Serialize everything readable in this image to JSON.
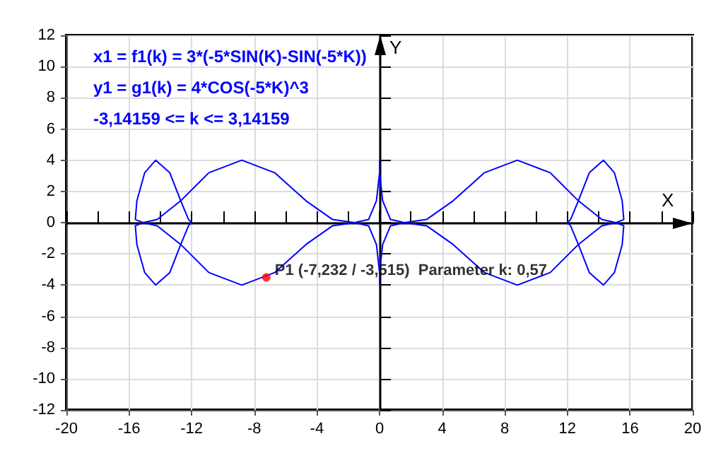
{
  "chart_data": {
    "type": "line",
    "xlabel": "X",
    "ylabel": "Y",
    "xlim": [
      -20,
      20
    ],
    "xticks": [
      -20,
      -16,
      -12,
      -8,
      -4,
      0,
      4,
      8,
      12,
      16,
      20
    ],
    "ylim": [
      -12,
      12
    ],
    "yticks": [
      -12,
      -10,
      -8,
      -6,
      -4,
      -2,
      0,
      2,
      4,
      6,
      8,
      10,
      12
    ],
    "grid": true,
    "marker": "none",
    "line_style": "solid",
    "annotations": [
      "x1 = f1(k) = 3*(-5*SIN(K)-SIN(-5*K))",
      "y1 = g1(k) = 4*COS(-5*K)^3",
      "-3,14159 <= k <= 3,14159",
      {
        "text": "P1 (-7,232 / -3,515)  Parameter k: 0,57",
        "x": -7.232,
        "y": -3.515
      }
    ],
    "series": [
      {
        "color": "#0000ff",
        "x": [
          0.0,
          0.2,
          0.7,
          1.6,
          3.0,
          4.7,
          6.7,
          8.8,
          10.9,
          12.7,
          14.2,
          15.1,
          15.6,
          15.5,
          15.0,
          14.3,
          13.4,
          12.7,
          12.2,
          12.0,
          12.2,
          12.7,
          13.4,
          14.3,
          15.0,
          15.5,
          15.6,
          15.1,
          14.2,
          12.7,
          10.9,
          8.8,
          6.7,
          4.7,
          3.0,
          1.6,
          0.7,
          0.2,
          0.0,
          0,
          0.0,
          -0.2,
          -0.7,
          -1.6,
          -3.0,
          -4.7,
          -6.7,
          -8.8,
          -10.9,
          -12.7,
          -14.2,
          -15.1,
          -15.6,
          -15.5,
          -15.0,
          -14.3,
          -13.4,
          -12.7,
          -12.2,
          -12.0,
          -12.2,
          -12.7,
          -13.4,
          -14.3,
          -15.0,
          -15.5,
          -15.6,
          -15.1,
          -14.2,
          -12.7,
          -10.9,
          -8.8,
          -6.7,
          -4.7,
          -3.0,
          -1.6,
          -0.7,
          -0.2,
          0.0,
          0
        ],
        "values": [
          -3.2,
          -1.4,
          -0.2,
          0,
          0.2,
          1.4,
          3.2,
          4,
          3.2,
          1.4,
          0.2,
          0,
          -0.2,
          -1.4,
          -3.2,
          -4,
          -3.2,
          -1.4,
          -0.2,
          0,
          0.2,
          1.4,
          3.2,
          4,
          3.2,
          1.4,
          0.2,
          0,
          -0.2,
          -1.4,
          -3.2,
          -4,
          -3.2,
          -1.4,
          -0.2,
          0,
          0.2,
          1.4,
          3.2,
          4,
          3.2,
          1.4,
          0.2,
          0,
          -0.2,
          -1.4,
          -3.2,
          -4,
          -3.2,
          -1.4,
          -0.2,
          0,
          0.2,
          1.4,
          3.2,
          4,
          3.2,
          1.4,
          0.2,
          0,
          -0.2,
          -1.4,
          -3.2,
          -4,
          -3.2,
          -1.4,
          -0.2,
          0,
          0.2,
          1.4,
          3.2,
          4,
          3.2,
          1.4,
          0.2,
          0,
          -0.2,
          -1.4,
          -3.2,
          -4
        ]
      },
      {
        "type": "scatter",
        "color": "#ff0000",
        "marker": "circle",
        "x": [
          -7.232
        ],
        "values": [
          -3.515
        ]
      }
    ]
  }
}
